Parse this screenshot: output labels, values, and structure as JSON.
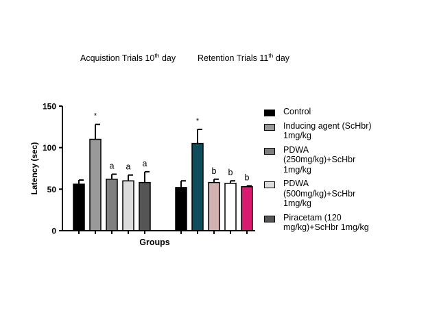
{
  "chart_data": {
    "type": "bar",
    "title_left": "Acquistion Trials 10",
    "title_left_sup": "th",
    "title_left_tail": " day",
    "title_right": "Retention Trials 11",
    "title_right_sup": "th",
    "title_right_tail": " day",
    "xlabel": "Groups",
    "ylabel": "Latency (sec)",
    "ylim": [
      0,
      150
    ],
    "yticks": [
      "0",
      "50",
      "100",
      "150"
    ],
    "legend_position": "right",
    "legend": [
      {
        "label": "Control",
        "color": "#000000"
      },
      {
        "label": "Inducing agent (ScHbr)\n1mg/kg",
        "color": "#999999"
      },
      {
        "label": "PDWA\n(250mg/kg)+ScHbr\n1mg/kg",
        "color": "#7f7f7f"
      },
      {
        "label": "PDWA\n(500mg/kg)+ScHbr\n1mg/kg",
        "color": "#dcdcdc"
      },
      {
        "label": "Piracetam (120\nmg/kg)+ScHbr 1mg/kg",
        "color": "#555555"
      }
    ],
    "groups": [
      {
        "name": "Acquistion Trials 10th day",
        "bars": [
          {
            "value": 56,
            "error": 5,
            "color": "#000000",
            "label": ""
          },
          {
            "value": 110,
            "error": 18,
            "color": "#999999",
            "label": "*"
          },
          {
            "value": 62,
            "error": 6,
            "color": "#7f7f7f",
            "label": "a"
          },
          {
            "value": 60,
            "error": 7,
            "color": "#dcdcdc",
            "label": "a"
          },
          {
            "value": 58,
            "error": 13,
            "color": "#555555",
            "label": "a"
          }
        ]
      },
      {
        "name": "Retention Trials 11th day",
        "bars": [
          {
            "value": 52,
            "error": 8,
            "color": "#000000",
            "label": ""
          },
          {
            "value": 105,
            "error": 17,
            "color": "#0f4d5c",
            "label": "*"
          },
          {
            "value": 58,
            "error": 4,
            "color": "#d2b2b0",
            "label": "b"
          },
          {
            "value": 57,
            "error": 3,
            "color": "#ffffff",
            "label": "b"
          },
          {
            "value": 53,
            "error": 1,
            "color": "#d81b70",
            "label": "b"
          }
        ]
      }
    ]
  }
}
